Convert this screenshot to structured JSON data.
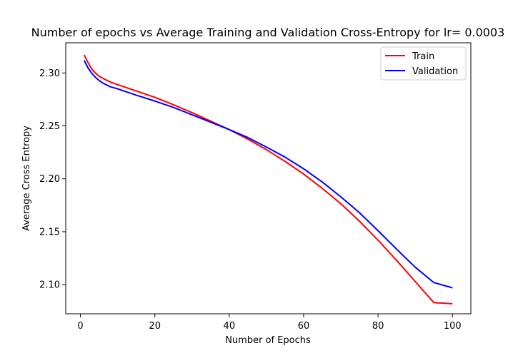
{
  "chart_data": {
    "type": "line",
    "title": "Number of epochs vs Average Training and Validation Cross-Entropy for lr= 0.0003",
    "xlabel": "Number of Epochs",
    "ylabel": "Average Cross Entropy",
    "xlim": [
      -3.95,
      104.95
    ],
    "ylim": [
      2.0725,
      2.3285
    ],
    "xticks": [
      0,
      20,
      40,
      60,
      80,
      100
    ],
    "xtick_labels": [
      "0",
      "20",
      "40",
      "60",
      "80",
      "100"
    ],
    "yticks": [
      2.1,
      2.15,
      2.2,
      2.25,
      2.3
    ],
    "ytick_labels": [
      "2.10",
      "2.15",
      "2.20",
      "2.25",
      "2.30"
    ],
    "grid": false,
    "legend_position": "top-right",
    "series": [
      {
        "name": "Train",
        "color": "#ff0000",
        "x": [
          1,
          2,
          3,
          4,
          5,
          6,
          8,
          10,
          15,
          20,
          25,
          30,
          35,
          40,
          45,
          50,
          55,
          60,
          65,
          70,
          75,
          80,
          85,
          90,
          95,
          100
        ],
        "y": [
          2.317,
          2.31,
          2.304,
          2.3,
          2.297,
          2.295,
          2.2915,
          2.289,
          2.283,
          2.277,
          2.27,
          2.2625,
          2.2545,
          2.2465,
          2.2375,
          2.2275,
          2.2165,
          2.2045,
          2.191,
          2.1765,
          2.16,
          2.142,
          2.123,
          2.103,
          2.083,
          2.082
        ]
      },
      {
        "name": "Validation",
        "color": "#0000ff",
        "x": [
          1,
          2,
          3,
          4,
          5,
          6,
          8,
          10,
          15,
          20,
          25,
          30,
          35,
          40,
          45,
          50,
          55,
          60,
          65,
          70,
          75,
          80,
          85,
          90,
          95,
          100
        ],
        "y": [
          2.312,
          2.305,
          2.3,
          2.296,
          2.293,
          2.2905,
          2.287,
          2.285,
          2.279,
          2.2735,
          2.2675,
          2.2605,
          2.2535,
          2.2465,
          2.239,
          2.23,
          2.2205,
          2.2095,
          2.197,
          2.183,
          2.168,
          2.151,
          2.1335,
          2.1165,
          2.102,
          2.097
        ]
      }
    ]
  }
}
